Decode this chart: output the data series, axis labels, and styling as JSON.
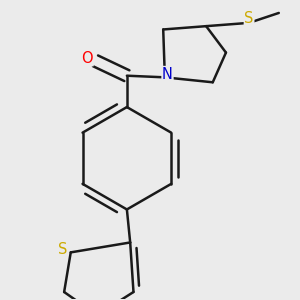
{
  "background_color": "#ebebeb",
  "bond_color": "#1a1a1a",
  "atom_colors": {
    "O": "#ff0000",
    "N": "#0000cc",
    "S": "#ccaa00"
  },
  "bond_width": 1.8,
  "font_size": 10.5
}
